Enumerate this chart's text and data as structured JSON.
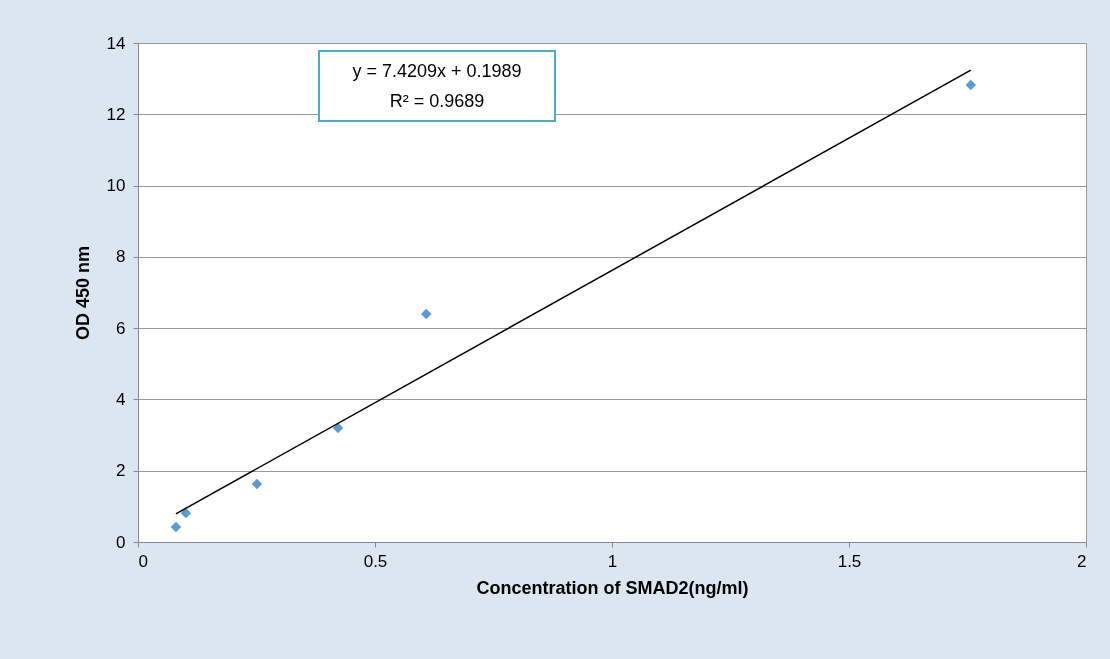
{
  "chart_data": {
    "type": "scatter",
    "xlabel": "Concentration of SMAD2(ng/ml)",
    "ylabel": "OD 450 nm",
    "xlim": [
      0,
      2
    ],
    "xticks": [
      0,
      0.5,
      1,
      1.5,
      2
    ],
    "ylim": [
      0,
      14
    ],
    "yticks": [
      0,
      2,
      4,
      6,
      8,
      10,
      12,
      14
    ],
    "grid": "y",
    "series": [
      {
        "color": "#5b9bd5",
        "marker": "diamond",
        "x": [
          0.08,
          0.101,
          0.251,
          0.422,
          0.608,
          1.757
        ],
        "values": [
          0.42,
          0.81,
          1.63,
          3.2,
          6.4,
          12.82
        ]
      },
      {
        "type": "line",
        "marker": "none",
        "color": "#000000",
        "x": [
          0.08,
          1.757
        ],
        "values": [
          0.79,
          13.24
        ]
      }
    ],
    "annotations": [
      "y = 7.4209x + 0.1989",
      "R² = 0.9689"
    ]
  }
}
